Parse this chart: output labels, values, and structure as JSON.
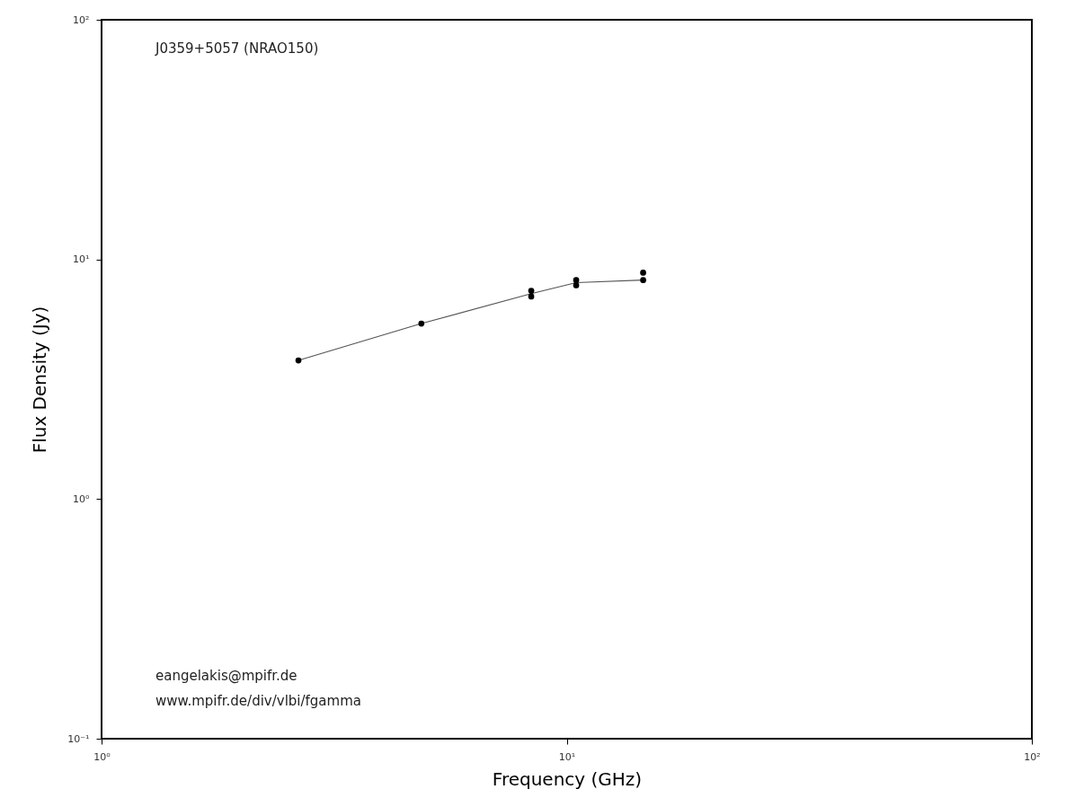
{
  "chart_data": {
    "type": "scatter",
    "xlabel": "Frequency (GHz)",
    "ylabel": "Flux Density (Jy)",
    "log": "xy",
    "xlim": [
      1,
      100
    ],
    "ylim": [
      0.1,
      100
    ],
    "xticks": [
      {
        "value": 1,
        "label": "10⁰"
      },
      {
        "value": 10,
        "label": "10¹"
      },
      {
        "value": 100,
        "label": "10²"
      }
    ],
    "yticks": [
      {
        "value": 0.1,
        "label": "10⁻¹"
      },
      {
        "value": 1,
        "label": "10⁰"
      },
      {
        "value": 10,
        "label": "10¹"
      },
      {
        "value": 100,
        "label": "10²"
      }
    ],
    "series": [
      {
        "color": "#000000",
        "marker": "circle",
        "x": [
          2.65,
          4.87,
          8.39,
          8.39,
          10.48,
          10.48,
          14.6,
          14.6
        ],
        "values": [
          3.79,
          5.4,
          7.4,
          7.0,
          8.2,
          7.8,
          8.8,
          8.2
        ]
      },
      {
        "type": "line",
        "color": "#555555",
        "marker": "none",
        "line_style": "solid",
        "x": [
          2.65,
          4.87,
          8.39,
          10.48,
          14.6
        ],
        "values": [
          3.79,
          5.4,
          7.2,
          8.0,
          8.2
        ]
      }
    ],
    "grid": false,
    "annotations": [
      "J0359+5057 (NRAO150)",
      "eangelakis@mpifr.de",
      "www.mpifr.de/div/vlbi/fgamma"
    ]
  }
}
